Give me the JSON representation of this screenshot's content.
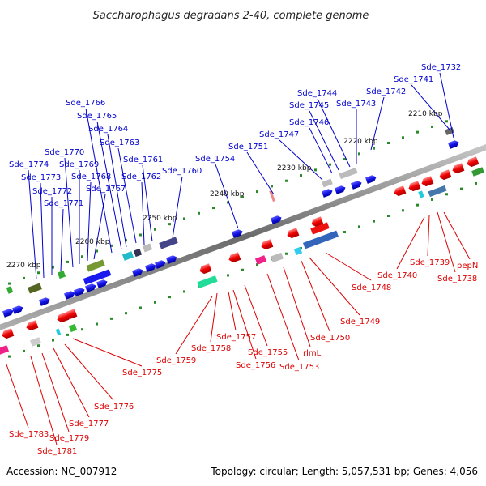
{
  "title": "Saccharophagus degradans 2-40, complete genome",
  "footer": {
    "accession": "Accession: NC_007912",
    "stats": "Topology: circular; Length: 5,057,531 bp; Genes: 4,056"
  },
  "kbp_labels": [
    "2210 kbp",
    "2220 kbp",
    "2230 kbp",
    "2240 kbp",
    "2250 kbp",
    "2260 kbp",
    "2270 kbp"
  ],
  "colors": {
    "forward_label": "#0000cc",
    "reverse_label": "#dd0000",
    "forward_gene": "#1a1aee",
    "reverse_gene": "#ee1111",
    "backbone": "#777777"
  },
  "forward_genes": [
    "Sde_1732",
    "Sde_1741",
    "Sde_1742",
    "Sde_1743",
    "Sde_1744",
    "Sde_1745",
    "Sde_1746",
    "Sde_1747",
    "Sde_1751",
    "Sde_1754",
    "Sde_1760",
    "Sde_1761",
    "Sde_1762",
    "Sde_1763",
    "Sde_1764",
    "Sde_1765",
    "Sde_1766",
    "Sde_1767",
    "Sde_1768",
    "Sde_1769",
    "Sde_1770",
    "Sde_1771",
    "Sde_1772",
    "Sde_1773",
    "Sde_1774"
  ],
  "reverse_genes": [
    "pepN",
    "Sde_1738",
    "Sde_1739",
    "Sde_1740",
    "Sde_1748",
    "Sde_1749",
    "Sde_1750",
    "rlmL",
    "Sde_1753",
    "Sde_1755",
    "Sde_1756",
    "Sde_1757",
    "Sde_1758",
    "Sde_1759",
    "Sde_1775",
    "Sde_1776",
    "Sde_1777",
    "Sde_1779",
    "Sde_1781",
    "Sde_1783"
  ]
}
